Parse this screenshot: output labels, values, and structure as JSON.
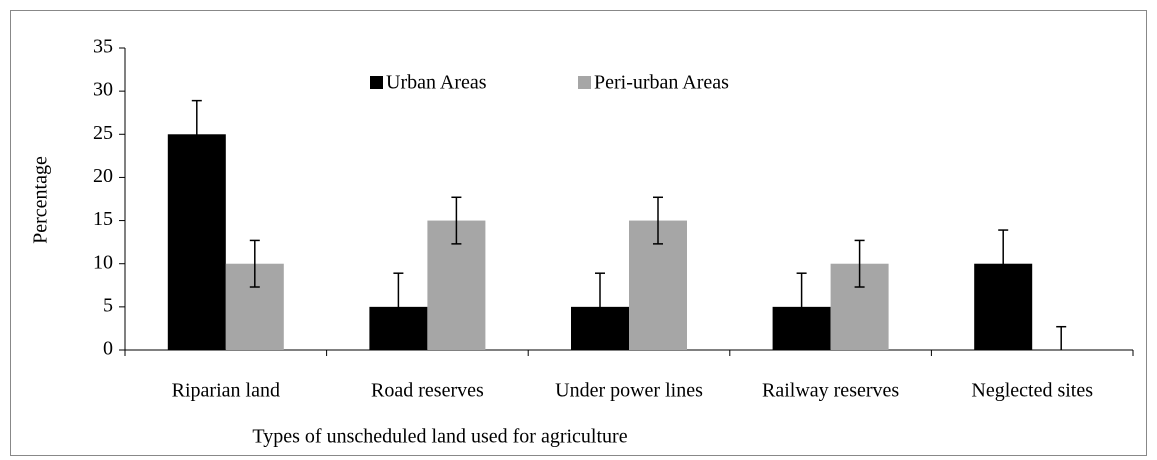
{
  "chart_data": {
    "type": "bar",
    "x_label": "Types of unscheduled land used for agriculture",
    "y_label": "Percentage",
    "categories": [
      "Riparian land",
      "Road reserves",
      "Under power lines",
      "Railway reserves",
      "Neglected sites"
    ],
    "series": [
      {
        "name": "Urban Areas",
        "color": "#000000",
        "values": [
          25,
          5,
          5,
          5,
          10
        ],
        "errors": [
          3.9,
          3.9,
          3.9,
          3.9,
          3.9
        ]
      },
      {
        "name": "Peri-urban Areas",
        "color": "#a6a6a6",
        "values": [
          10,
          15,
          15,
          10,
          0
        ],
        "errors": [
          2.7,
          2.7,
          2.7,
          2.7,
          2.7
        ]
      }
    ],
    "ylim": [
      0,
      35
    ],
    "yticks": [
      0,
      5,
      10,
      15,
      20,
      25,
      30,
      35
    ],
    "grid": false,
    "legend": "top"
  }
}
